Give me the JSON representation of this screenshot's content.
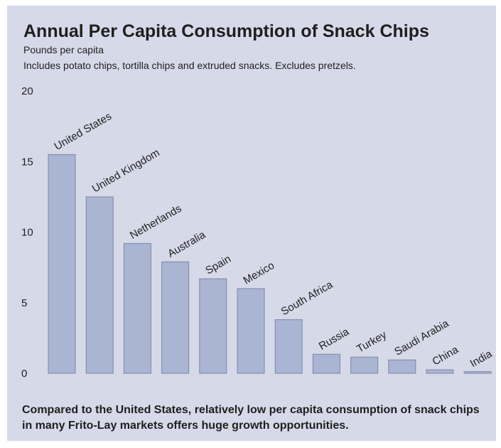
{
  "chart_data": {
    "type": "bar",
    "title": "Annual Per Capita Consumption of Snack Chips",
    "subtitle": "Pounds per capita",
    "note": "Includes potato chips, tortilla chips and extruded snacks. Excludes pretzels.",
    "xlabel": "",
    "ylabel": "",
    "categories": [
      "United States",
      "United Kingdom",
      "Netherlands",
      "Australia",
      "Spain",
      "Mexico",
      "South Africa",
      "Russia",
      "Turkey",
      "Saudi Arabia",
      "China",
      "India"
    ],
    "values": [
      15.5,
      12.5,
      9.2,
      7.9,
      6.7,
      6.0,
      3.8,
      1.35,
      1.15,
      0.95,
      0.25,
      0.12
    ],
    "ylim": [
      0,
      20
    ],
    "yticks": [
      "0",
      "5",
      "10",
      "15",
      "20"
    ],
    "grid": false,
    "legend": false,
    "colors": {
      "bar_fill": "#aab4d3",
      "bar_stroke": "#7d86a6",
      "background": "#d5d9e8"
    }
  },
  "footer": "Compared to the United States, relatively low per capita consumption of snack chips in many Frito-Lay markets offers huge growth opportunities."
}
